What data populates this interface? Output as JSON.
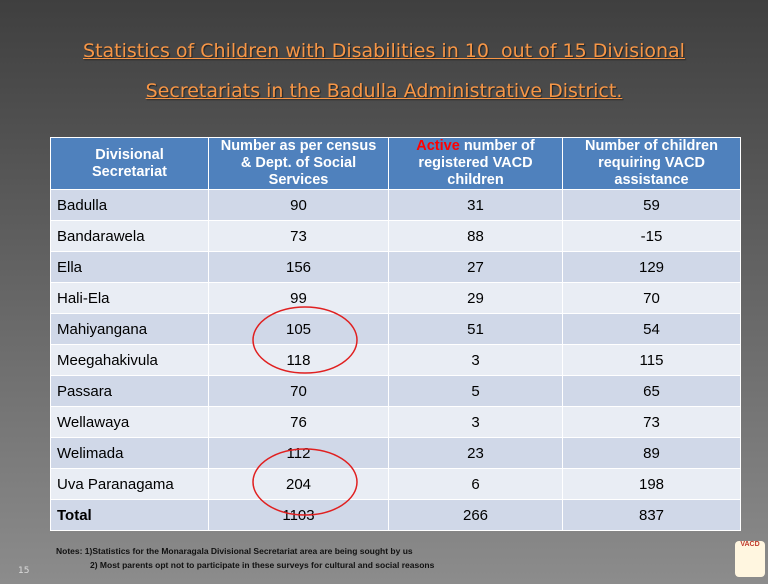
{
  "title": {
    "lines": [
      "Statistics of Children with Disabilities in 10  out of 15 Divisional",
      "Secretariats in the Badulla Administrative District."
    ]
  },
  "table": {
    "header": [
      {
        "text": "Divisional Secretariat"
      },
      {
        "text": "Number as per census & Dept. of Social Services"
      },
      {
        "highlight": "Active",
        "text": "number of registered  VACD children"
      },
      {
        "text": "Number of children requiring VACD assistance"
      }
    ],
    "rows": [
      [
        "Badulla",
        90,
        31,
        59
      ],
      [
        "Bandarawela",
        73,
        88,
        -15
      ],
      [
        "Ella",
        156,
        27,
        129
      ],
      [
        "Hali-Ela",
        99,
        29,
        70
      ],
      [
        "Mahiyangana",
        105,
        51,
        54
      ],
      [
        "Meegahakivula",
        118,
        3,
        115
      ],
      [
        "Passara",
        70,
        5,
        65
      ],
      [
        "Wellawaya",
        76,
        3,
        73
      ],
      [
        "Welimada",
        112,
        23,
        89
      ],
      [
        "Uva Paranagama",
        204,
        6,
        198
      ]
    ],
    "total": [
      "Total",
      1103,
      266,
      837
    ]
  },
  "notes": [
    "Notes: 1)Statistics for the Monaragala Divisional Secretariat area are being sought by us",
    "2) Most parents opt not to participate in these surveys for cultural and social reasons"
  ],
  "page_number": "15",
  "logo": {
    "text": "VACD"
  }
}
